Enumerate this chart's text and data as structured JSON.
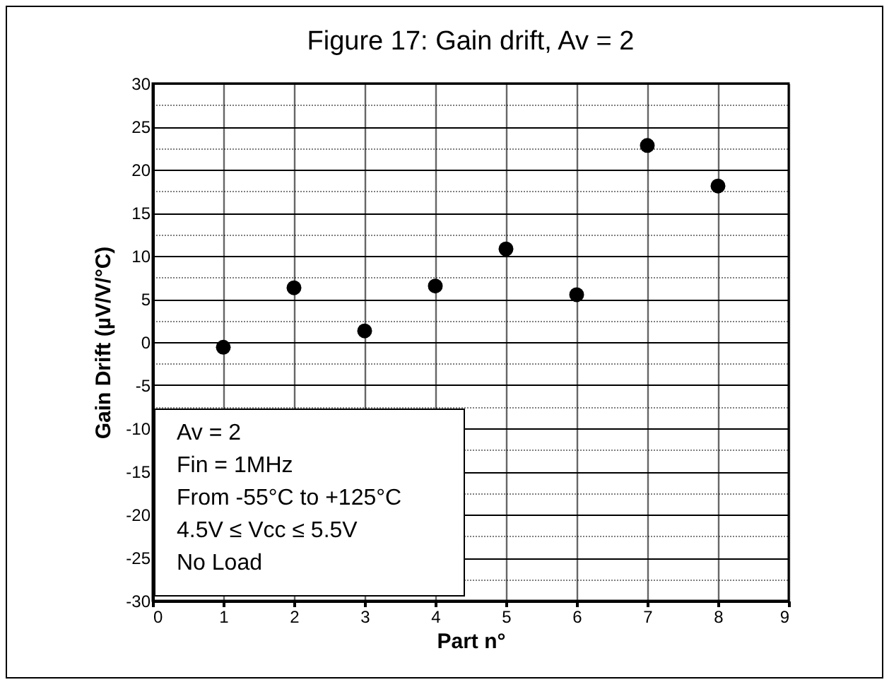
{
  "chart_data": {
    "type": "scatter",
    "title": "Figure 17: Gain drift, Av = 2",
    "xlabel": "Part n°",
    "ylabel": "Gain Drift (µV/V/°C)",
    "x": [
      1,
      2,
      3,
      4,
      5,
      6,
      7,
      8
    ],
    "values": [
      -0.6,
      6.3,
      1.3,
      6.5,
      10.8,
      5.5,
      22.8,
      18.1
    ],
    "color": "#000000",
    "marker": "circle",
    "xlim": [
      0,
      9
    ],
    "xticks": [
      0,
      1,
      2,
      3,
      4,
      5,
      6,
      7,
      8,
      9
    ],
    "ylim": [
      -30,
      30
    ],
    "yticks": [
      -30,
      {
        "value": -27.5,
        "label": null
      },
      -25,
      {
        "value": -22.5,
        "label": null
      },
      -20,
      {
        "value": -17.5,
        "label": null
      },
      -15,
      {
        "value": -12.5,
        "label": null
      },
      -10,
      {
        "value": -7.5,
        "label": null
      },
      -5,
      {
        "value": -2.5,
        "label": null
      },
      0,
      {
        "value": 2.5,
        "label": null
      },
      5,
      {
        "value": 7.5,
        "label": null
      },
      10,
      {
        "value": 12.5,
        "label": null
      },
      15,
      {
        "value": 17.5,
        "label": null
      },
      20,
      {
        "value": 22.5,
        "label": null
      },
      25,
      {
        "value": 27.5,
        "label": null
      },
      30
    ],
    "grid": true,
    "annotations": [
      "Av = 2",
      "Fin = 1MHz",
      "From -55°C to +125°C",
      "4.5V ≤ Vcc ≤ 5.5V",
      "No Load"
    ]
  }
}
